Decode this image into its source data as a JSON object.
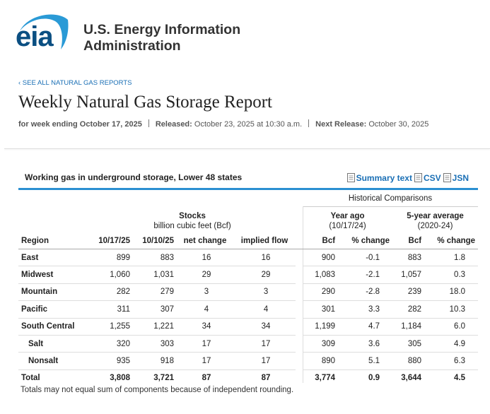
{
  "header": {
    "logo": "eia",
    "org_line1": "U.S. Energy Information",
    "org_line2": "Administration"
  },
  "breadcrumb": "‹ SEE ALL NATURAL GAS REPORTS",
  "title": "Weekly Natural Gas Storage Report",
  "meta": {
    "week": "for week ending October 17, 2025",
    "released_label": "Released:",
    "released": "October 23, 2025 at 10:30 a.m.",
    "next_label": "Next Release:",
    "next": "October 30, 2025"
  },
  "table": {
    "caption": "Working gas in underground storage, Lower 48 states",
    "links": [
      "Summary text",
      "CSV",
      "JSN"
    ],
    "historical": "Historical Comparisons",
    "stocks_title": "Stocks",
    "stocks_unit": "billion cubic feet (Bcf)",
    "year_ago_title": "Year ago",
    "year_ago_date": "(10/17/24)",
    "avg_title": "5-year average",
    "avg_range": "(2020-24)",
    "columns": [
      "Region",
      "10/17/25",
      "10/10/25",
      "net change",
      "implied flow",
      "Bcf",
      "% change",
      "Bcf",
      "% change"
    ],
    "rows": [
      [
        "East",
        "899",
        "883",
        "16",
        "16",
        "900",
        "-0.1",
        "883",
        "1.8"
      ],
      [
        "Midwest",
        "1,060",
        "1,031",
        "29",
        "29",
        "1,083",
        "-2.1",
        "1,057",
        "0.3"
      ],
      [
        "Mountain",
        "282",
        "279",
        "3",
        "3",
        "290",
        "-2.8",
        "239",
        "18.0"
      ],
      [
        "Pacific",
        "311",
        "307",
        "4",
        "4",
        "301",
        "3.3",
        "282",
        "10.3"
      ],
      [
        "South Central",
        "1,255",
        "1,221",
        "34",
        "34",
        "1,199",
        "4.7",
        "1,184",
        "6.0"
      ],
      [
        "Salt",
        "320",
        "303",
        "17",
        "17",
        "309",
        "3.6",
        "305",
        "4.9"
      ],
      [
        "Nonsalt",
        "935",
        "918",
        "17",
        "17",
        "890",
        "5.1",
        "880",
        "6.3"
      ],
      [
        "Total",
        "3,808",
        "3,721",
        "87",
        "87",
        "3,774",
        "0.9",
        "3,644",
        "4.5"
      ]
    ],
    "footnote": "Totals may not equal sum of components because of independent rounding."
  }
}
